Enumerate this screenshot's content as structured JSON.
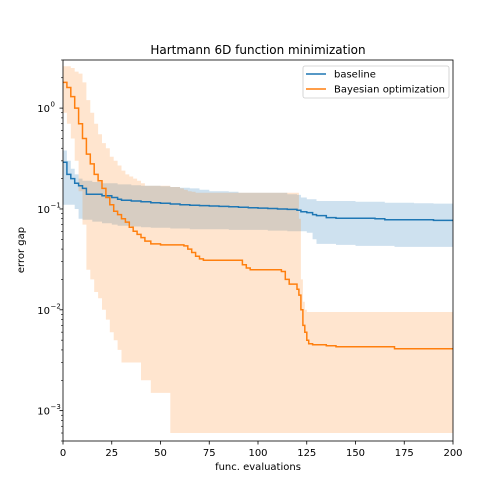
{
  "chart_data": {
    "type": "line",
    "title": "Hartmann 6D function minimization",
    "xlabel": "func. evaluations",
    "ylabel": "error gap",
    "xlim": [
      0,
      200
    ],
    "ylim": [
      0.0005,
      3.0
    ],
    "yscale": "log",
    "grid": false,
    "legend_position": "top-right",
    "x_ticks": [
      0,
      25,
      50,
      75,
      100,
      125,
      150,
      175,
      200
    ],
    "x_tick_labels": [
      "0",
      "25",
      "50",
      "75",
      "100",
      "125",
      "150",
      "175",
      "200"
    ],
    "y_ticks": [
      0.001,
      0.01,
      0.1,
      1
    ],
    "y_tick_labels": [
      "10",
      "10",
      "10",
      "10"
    ],
    "y_tick_exponents": [
      "−3",
      "−2",
      "−1",
      "0"
    ],
    "series": [
      {
        "name": "baseline",
        "color": "#1f77b4",
        "fill_color": "#1f77b4",
        "x": [
          0,
          2,
          4,
          6,
          8,
          10,
          12,
          15,
          20,
          25,
          28,
          30,
          35,
          40,
          45,
          50,
          55,
          60,
          65,
          70,
          75,
          80,
          85,
          90,
          95,
          100,
          105,
          110,
          115,
          120,
          122,
          125,
          128,
          130,
          135,
          140,
          150,
          160,
          165,
          170,
          180,
          190,
          200
        ],
        "y": [
          0.29,
          0.22,
          0.2,
          0.18,
          0.17,
          0.16,
          0.14,
          0.14,
          0.135,
          0.13,
          0.125,
          0.122,
          0.12,
          0.118,
          0.115,
          0.114,
          0.112,
          0.11,
          0.109,
          0.108,
          0.107,
          0.106,
          0.105,
          0.104,
          0.103,
          0.102,
          0.101,
          0.1,
          0.099,
          0.097,
          0.094,
          0.092,
          0.088,
          0.086,
          0.082,
          0.081,
          0.081,
          0.08,
          0.078,
          0.078,
          0.078,
          0.077,
          0.077
        ],
        "lower": [
          0.11,
          0.11,
          0.11,
          0.1,
          0.08,
          0.078,
          0.078,
          0.075,
          0.072,
          0.07,
          0.068,
          0.068,
          0.067,
          0.066,
          0.065,
          0.065,
          0.064,
          0.064,
          0.063,
          0.063,
          0.063,
          0.063,
          0.062,
          0.062,
          0.062,
          0.062,
          0.061,
          0.061,
          0.06,
          0.06,
          0.06,
          0.058,
          0.05,
          0.045,
          0.045,
          0.044,
          0.043,
          0.043,
          0.043,
          0.042,
          0.042,
          0.042,
          0.042
        ],
        "upper": [
          0.38,
          0.3,
          0.25,
          0.22,
          0.2,
          0.19,
          0.19,
          0.185,
          0.18,
          0.18,
          0.175,
          0.175,
          0.172,
          0.17,
          0.17,
          0.168,
          0.165,
          0.162,
          0.16,
          0.155,
          0.15,
          0.15,
          0.148,
          0.145,
          0.145,
          0.145,
          0.145,
          0.145,
          0.14,
          0.138,
          0.13,
          0.125,
          0.125,
          0.12,
          0.12,
          0.12,
          0.118,
          0.118,
          0.115,
          0.115,
          0.114,
          0.113,
          0.113
        ]
      },
      {
        "name": "Bayesian optimization",
        "color": "#ff7f0e",
        "fill_color": "#ff7f0e",
        "x": [
          0,
          2,
          4,
          6,
          8,
          10,
          12,
          14,
          16,
          18,
          20,
          22,
          24,
          26,
          28,
          30,
          32,
          34,
          36,
          38,
          40,
          42,
          45,
          50,
          55,
          60,
          62,
          64,
          66,
          68,
          70,
          72,
          75,
          80,
          85,
          90,
          92,
          94,
          96,
          100,
          105,
          110,
          112,
          114,
          116,
          118,
          120,
          121,
          122,
          123,
          124,
          125,
          126,
          128,
          135,
          140,
          150,
          160,
          165,
          170,
          180,
          190,
          200
        ],
        "y": [
          1.8,
          1.6,
          1.3,
          1.0,
          0.7,
          0.5,
          0.35,
          0.28,
          0.22,
          0.19,
          0.16,
          0.13,
          0.11,
          0.095,
          0.088,
          0.08,
          0.074,
          0.066,
          0.06,
          0.056,
          0.052,
          0.048,
          0.045,
          0.044,
          0.044,
          0.044,
          0.043,
          0.04,
          0.037,
          0.034,
          0.032,
          0.031,
          0.031,
          0.031,
          0.031,
          0.031,
          0.028,
          0.026,
          0.025,
          0.025,
          0.025,
          0.025,
          0.024,
          0.02,
          0.018,
          0.018,
          0.016,
          0.014,
          0.01,
          0.007,
          0.006,
          0.005,
          0.0046,
          0.0045,
          0.0044,
          0.0043,
          0.0043,
          0.0043,
          0.0043,
          0.0041,
          0.0041,
          0.0041,
          0.0041
        ],
        "lower": [
          0.9,
          0.7,
          0.5,
          0.3,
          0.15,
          0.07,
          0.025,
          0.02,
          0.015,
          0.013,
          0.01,
          0.008,
          0.006,
          0.005,
          0.004,
          0.003,
          0.003,
          0.003,
          0.003,
          0.003,
          0.002,
          0.002,
          0.0015,
          0.0015,
          0.0006,
          0.0006,
          0.0006,
          0.0006,
          0.0006,
          0.0006,
          0.0006,
          0.0006,
          0.0006,
          0.0006,
          0.0006,
          0.0006,
          0.0006,
          0.0006,
          0.0006,
          0.0006,
          0.0006,
          0.0006,
          0.0006,
          0.0006,
          0.0006,
          0.0006,
          0.0006,
          0.0006,
          0.0006,
          0.0006,
          0.0006,
          0.0006,
          0.0006,
          0.0006,
          0.0006,
          0.0006,
          0.0006,
          0.0006,
          0.0006,
          0.0006,
          0.0006,
          0.0006,
          0.0006
        ],
        "upper": [
          2.6,
          2.6,
          2.5,
          2.3,
          2.2,
          1.8,
          1.2,
          0.9,
          0.7,
          0.55,
          0.45,
          0.4,
          0.33,
          0.3,
          0.27,
          0.24,
          0.22,
          0.21,
          0.2,
          0.19,
          0.18,
          0.17,
          0.17,
          0.17,
          0.165,
          0.16,
          0.155,
          0.15,
          0.148,
          0.145,
          0.145,
          0.145,
          0.145,
          0.145,
          0.145,
          0.145,
          0.145,
          0.145,
          0.145,
          0.145,
          0.145,
          0.145,
          0.145,
          0.145,
          0.145,
          0.145,
          0.145,
          0.08,
          0.02,
          0.012,
          0.01,
          0.0095,
          0.0095,
          0.0095,
          0.0095,
          0.0095,
          0.0095,
          0.0095,
          0.0095,
          0.0095,
          0.0095,
          0.0095,
          0.0095
        ]
      }
    ]
  }
}
